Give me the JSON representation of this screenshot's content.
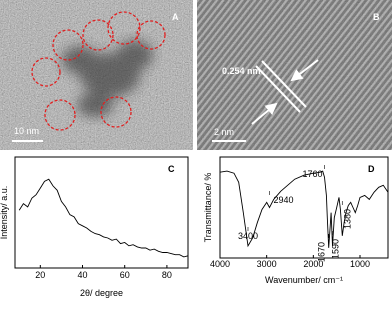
{
  "panels": [
    {
      "label": "A",
      "scale_bar": "10 nm"
    },
    {
      "label": "B",
      "scale_bar": "2 nm",
      "spacing": "0.254 nm"
    }
  ],
  "chart_data": [
    {
      "type": "line",
      "label": "C",
      "x_label": "2θ/ degree",
      "y_label": "Intensity/ a.u.",
      "color": "#000000",
      "x": [
        10,
        12,
        14,
        16,
        18,
        20,
        22,
        24,
        26,
        28,
        30,
        32,
        34,
        36,
        38,
        40,
        42,
        44,
        46,
        48,
        50,
        52,
        54,
        56,
        58,
        60,
        62,
        64,
        66,
        68,
        70,
        72,
        74,
        76,
        78,
        80,
        82,
        84,
        86,
        88,
        90
      ],
      "values": [
        52,
        58,
        55,
        63,
        66,
        72,
        78,
        80,
        74,
        70,
        60,
        55,
        48,
        46,
        40,
        38,
        36,
        33,
        31,
        30,
        28,
        27,
        25,
        26,
        22,
        23,
        20,
        21,
        19,
        18,
        18,
        16,
        17,
        15,
        14,
        14,
        13,
        12,
        12,
        10,
        11
      ],
      "xlim": [
        8,
        90
      ],
      "ylim": [
        0,
        100
      ],
      "xticks": [
        20,
        40,
        60,
        80
      ]
    },
    {
      "type": "line",
      "label": "D",
      "x_label": "Wavenumber/ cm⁻¹",
      "y_label": "Transmittance/ %",
      "color": "#000000",
      "x": [
        4000,
        3850,
        3700,
        3600,
        3500,
        3400,
        3300,
        3200,
        3100,
        3000,
        2940,
        2850,
        2700,
        2600,
        2400,
        2200,
        2000,
        1850,
        1800,
        1760,
        1720,
        1700,
        1670,
        1640,
        1620,
        1590,
        1550,
        1500,
        1450,
        1420,
        1380,
        1340,
        1300,
        1250,
        1200,
        1150,
        1100,
        1050,
        1000,
        900,
        800,
        700,
        600,
        500,
        400
      ],
      "values": [
        85,
        86,
        84,
        75,
        45,
        12,
        20,
        35,
        48,
        55,
        50,
        58,
        66,
        70,
        78,
        82,
        84,
        85,
        86,
        80,
        62,
        40,
        10,
        30,
        45,
        12,
        40,
        50,
        60,
        48,
        22,
        35,
        45,
        52,
        55,
        50,
        45,
        52,
        60,
        62,
        58,
        65,
        70,
        72,
        65
      ],
      "xlim": [
        4000,
        400
      ],
      "ylim": [
        0,
        100
      ],
      "xticks": [
        4000,
        3000,
        2000,
        1000
      ],
      "peaks": [
        3400,
        2940,
        1760,
        1670,
        1590,
        1380
      ]
    }
  ]
}
